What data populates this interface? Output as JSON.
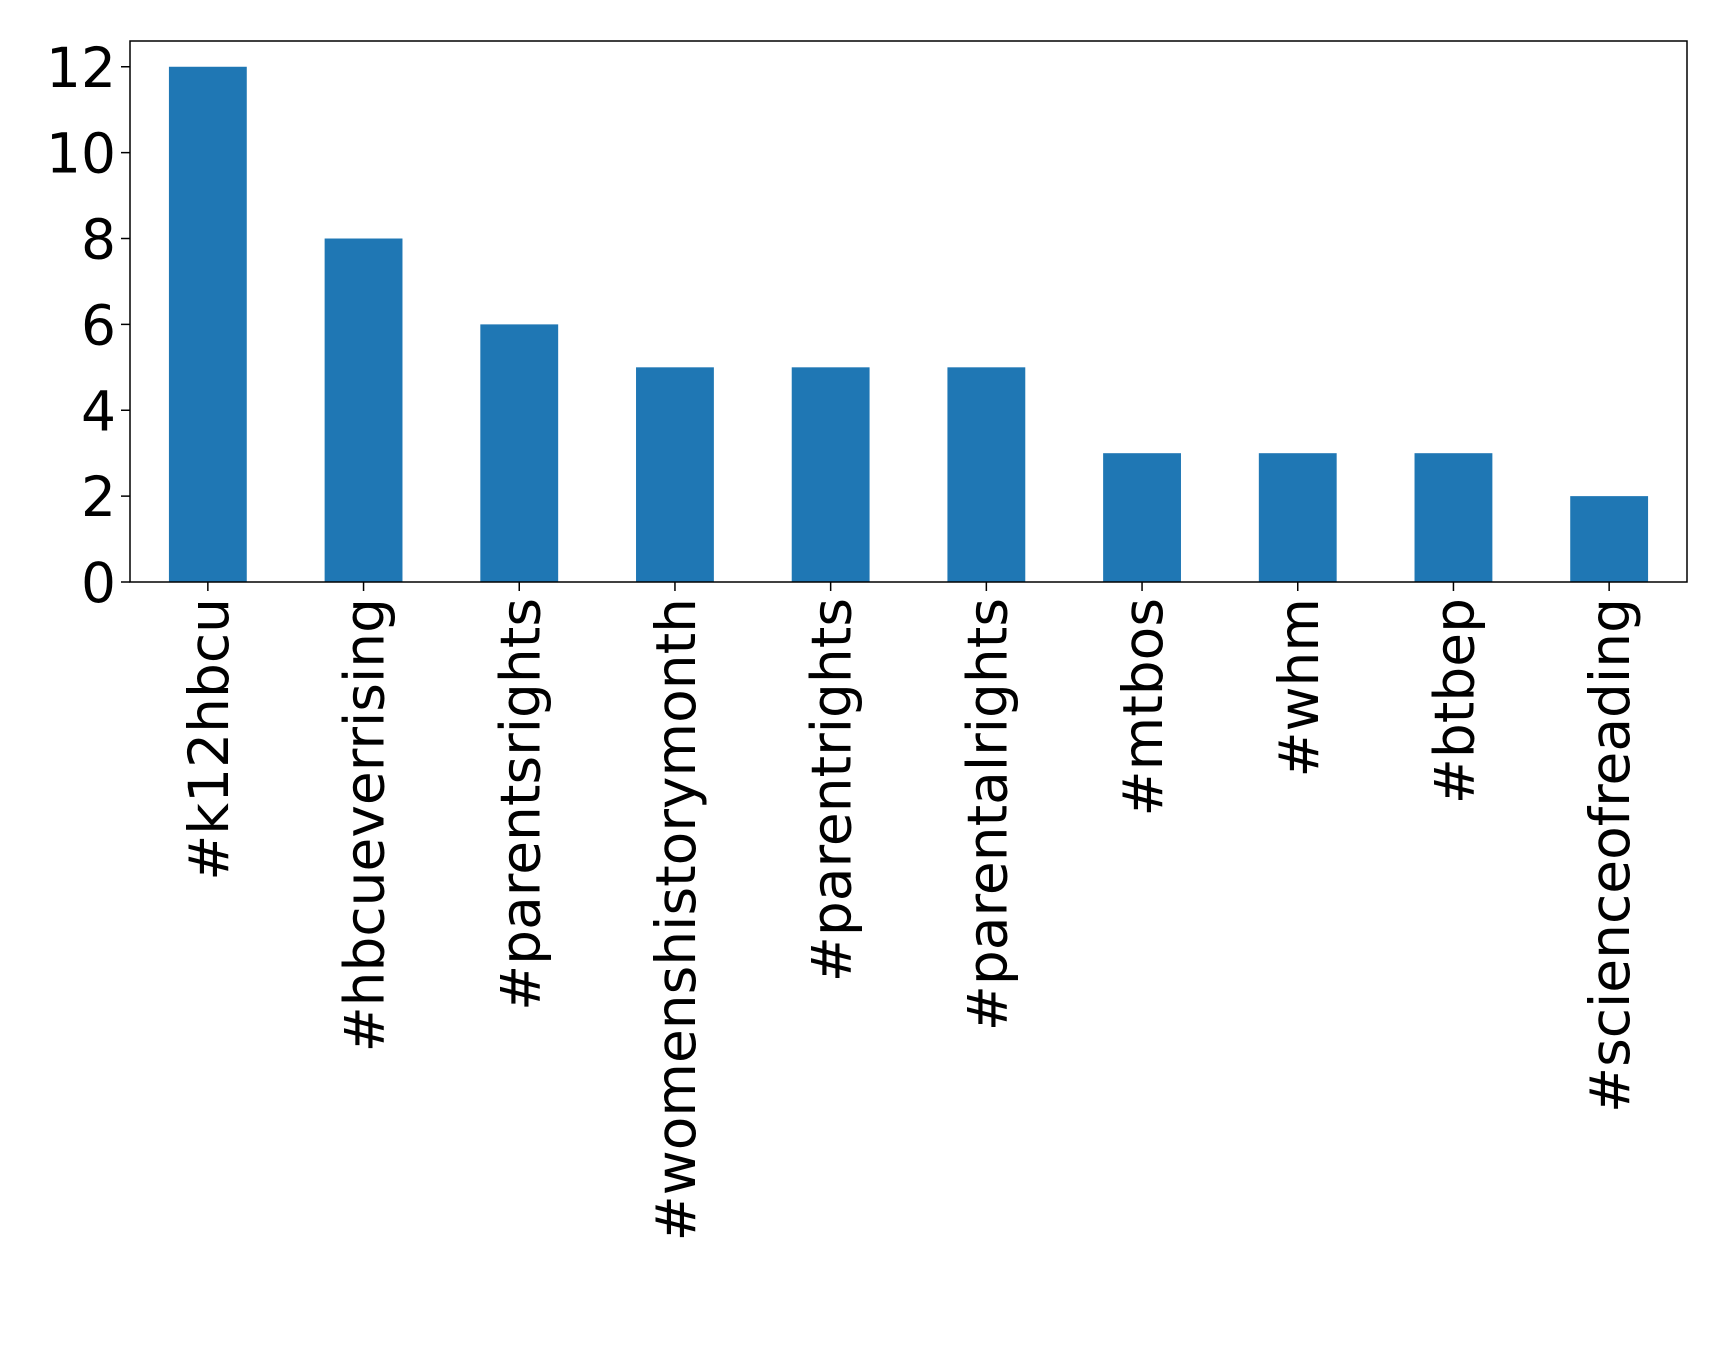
{
  "chart_data": {
    "type": "bar",
    "categories": [
      "#k12hbcu",
      "#hbcueverrising",
      "#parentsrights",
      "#womenshistorymonth",
      "#parentrights",
      "#parentalrights",
      "#mtbos",
      "#whm",
      "#btbep",
      "#scienceofreading"
    ],
    "values": [
      12,
      8,
      6,
      5,
      5,
      5,
      3,
      3,
      3,
      2
    ],
    "color": "#1f77b4",
    "ylim": [
      0,
      12.6
    ],
    "yticks": [
      0,
      2,
      4,
      6,
      8,
      10,
      12
    ],
    "grid": false
  }
}
